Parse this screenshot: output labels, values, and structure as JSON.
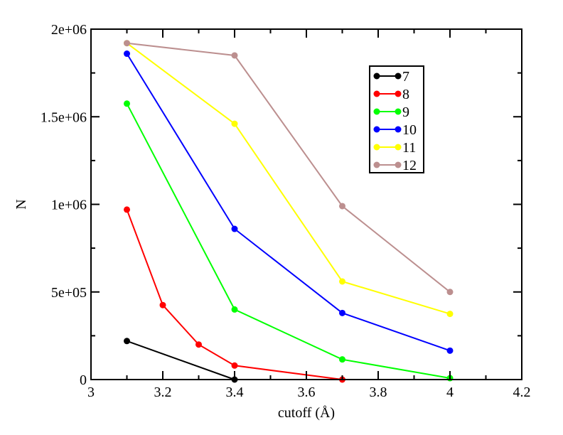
{
  "chart_data": {
    "type": "line",
    "title": "",
    "xlabel": "cutoff (Å)",
    "ylabel": "N",
    "xlim": [
      3,
      4.2
    ],
    "ylim": [
      0,
      2000000
    ],
    "xticks": [
      3,
      3.2,
      3.4,
      3.6,
      3.8,
      4,
      4.2
    ],
    "xtick_labels": [
      "3",
      "3.2",
      "3.4",
      "3.6",
      "3.8",
      "4",
      "4.2"
    ],
    "yticks": [
      0,
      500000,
      1000000,
      1500000,
      2000000
    ],
    "ytick_labels": [
      "0",
      "5e+05",
      "1e+06",
      "1.5e+06",
      "2e+06"
    ],
    "grid": false,
    "legend_position": "top-right",
    "series": [
      {
        "name": "7",
        "color": "#000000",
        "x": [
          3.1,
          3.4
        ],
        "y": [
          220000,
          0
        ]
      },
      {
        "name": "8",
        "color": "#ff0000",
        "x": [
          3.1,
          3.2,
          3.3,
          3.4,
          3.7
        ],
        "y": [
          970000,
          425000,
          200000,
          80000,
          0
        ]
      },
      {
        "name": "9",
        "color": "#00ff00",
        "x": [
          3.1,
          3.4,
          3.7,
          4.0
        ],
        "y": [
          1575000,
          400000,
          115000,
          8000
        ]
      },
      {
        "name": "10",
        "color": "#0000ff",
        "x": [
          3.1,
          3.4,
          3.7,
          4.0
        ],
        "y": [
          1860000,
          860000,
          380000,
          165000
        ]
      },
      {
        "name": "11",
        "color": "#ffff00",
        "x": [
          3.1,
          3.4,
          3.7,
          4.0
        ],
        "y": [
          1920000,
          1460000,
          560000,
          375000
        ]
      },
      {
        "name": "12",
        "color": "#bc8f8f",
        "x": [
          3.1,
          3.4,
          3.7,
          4.0
        ],
        "y": [
          1920000,
          1850000,
          990000,
          500000
        ]
      }
    ]
  }
}
